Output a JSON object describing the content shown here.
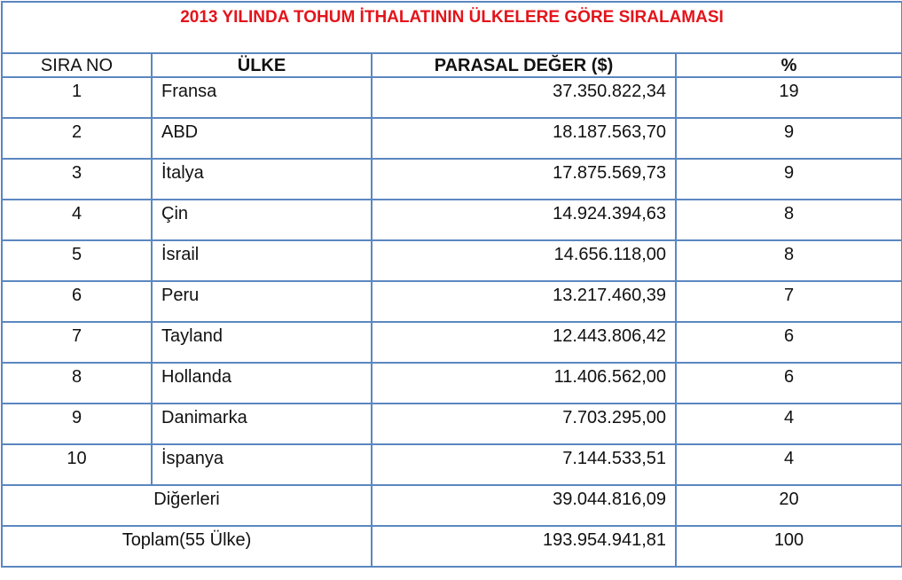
{
  "title": "2013 YILINDA TOHUM İTHALATININ ÜLKELERE GÖRE SIRALAMASI",
  "headers": [
    "SIRA NO",
    "ÜLKE",
    "PARASAL DEĞER ($)",
    "%"
  ],
  "rows": [
    {
      "no": "1",
      "country": "Fransa",
      "value": "37.350.822,34",
      "pct": "19"
    },
    {
      "no": "2",
      "country": "ABD",
      "value": "18.187.563,70",
      "pct": "9"
    },
    {
      "no": "3",
      "country": "İtalya",
      "value": "17.875.569,73",
      "pct": "9"
    },
    {
      "no": "4",
      "country": "Çin",
      "value": "14.924.394,63",
      "pct": "8"
    },
    {
      "no": "5",
      "country": "İsrail",
      "value": "14.656.118,00",
      "pct": "8"
    },
    {
      "no": "6",
      "country": "Peru",
      "value": "13.217.460,39",
      "pct": "7"
    },
    {
      "no": "7",
      "country": "Tayland",
      "value": "12.443.806,42",
      "pct": "6"
    },
    {
      "no": "8",
      "country": "Hollanda",
      "value": "11.406.562,00",
      "pct": "6"
    },
    {
      "no": "9",
      "country": "Danimarka",
      "value": "7.703.295,00",
      "pct": "4"
    },
    {
      "no": "10",
      "country": "İspanya",
      "value": "7.144.533,51",
      "pct": "4"
    }
  ],
  "others": {
    "label": "Diğerleri",
    "value": "39.044.816,09",
    "pct": "20"
  },
  "total": {
    "label": "Toplam(55 Ülke)",
    "value": "193.954.941,81",
    "pct": "100"
  }
}
